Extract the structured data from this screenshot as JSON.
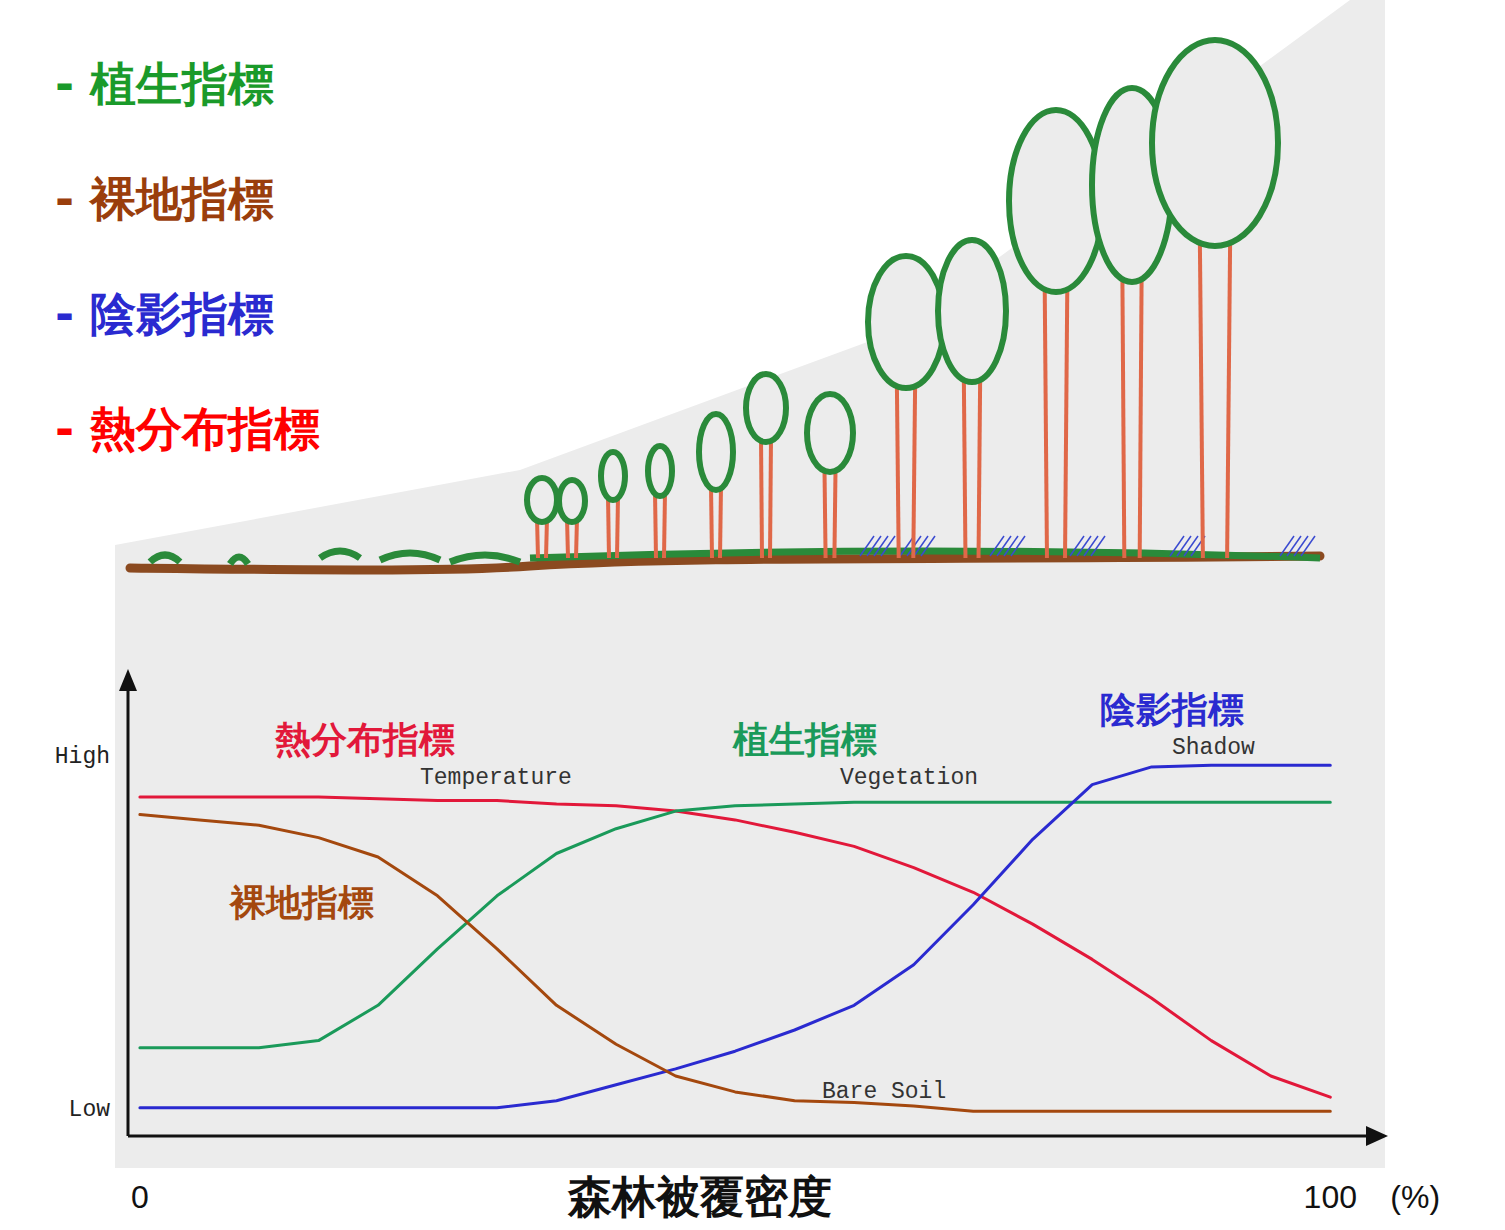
{
  "chart_data": {
    "type": "line",
    "xlabel": "森林被覆密度",
    "x_unit": "(%)",
    "x": [
      0,
      5,
      10,
      15,
      20,
      25,
      30,
      35,
      40,
      45,
      50,
      55,
      60,
      65,
      70,
      75,
      80,
      85,
      90,
      95,
      100
    ],
    "xlim": [
      -1,
      103
    ],
    "xticks": [
      0,
      100
    ],
    "ylim": [
      -8,
      118
    ],
    "yticks": [
      {
        "value": 0,
        "label": "Low"
      },
      {
        "value": 100,
        "label": "High"
      }
    ],
    "grid": false,
    "header_list": [
      {
        "text": "- 植生指標",
        "color": "#1a9a2a"
      },
      {
        "text": "- 裸地指標",
        "color": "#9a3e0c"
      },
      {
        "text": "- 陰影指標",
        "color": "#2a2ad0"
      },
      {
        "text": "- 熱分布指標",
        "color": "#ff0000"
      }
    ],
    "series": [
      {
        "name": "Temperature",
        "label": "熱分布指標",
        "color": "#e2183a",
        "values": [
          88,
          88,
          88,
          88,
          87.5,
          87,
          87,
          86,
          85.5,
          84,
          81.5,
          78,
          74,
          68,
          61,
          52,
          42,
          31,
          19,
          9,
          3
        ]
      },
      {
        "name": "Vegetation",
        "label": "植生指標",
        "color": "#1a9a5a",
        "values": [
          17,
          17,
          17,
          19,
          29,
          45,
          60,
          72,
          79,
          84,
          85.5,
          86,
          86.5,
          86.5,
          86.5,
          86.5,
          86.5,
          86.5,
          86.5,
          86.5,
          86.5
        ]
      },
      {
        "name": "Shadow",
        "label": "陰影指標",
        "color": "#2a2ad0",
        "values": [
          0,
          0,
          0,
          0,
          0,
          0,
          0,
          2,
          6.5,
          11,
          16,
          22,
          29,
          40.5,
          57.5,
          76,
          91.5,
          96.5,
          97,
          97,
          97
        ]
      },
      {
        "name": "Bare Soil",
        "label": "裸地指標",
        "color": "#a4480e",
        "values": [
          83,
          81.5,
          80,
          76.5,
          71,
          60,
          45,
          29,
          18,
          9,
          4.5,
          2,
          1.5,
          0.5,
          -1,
          -1,
          -1,
          -1,
          -1,
          -1,
          -1
        ]
      }
    ]
  }
}
